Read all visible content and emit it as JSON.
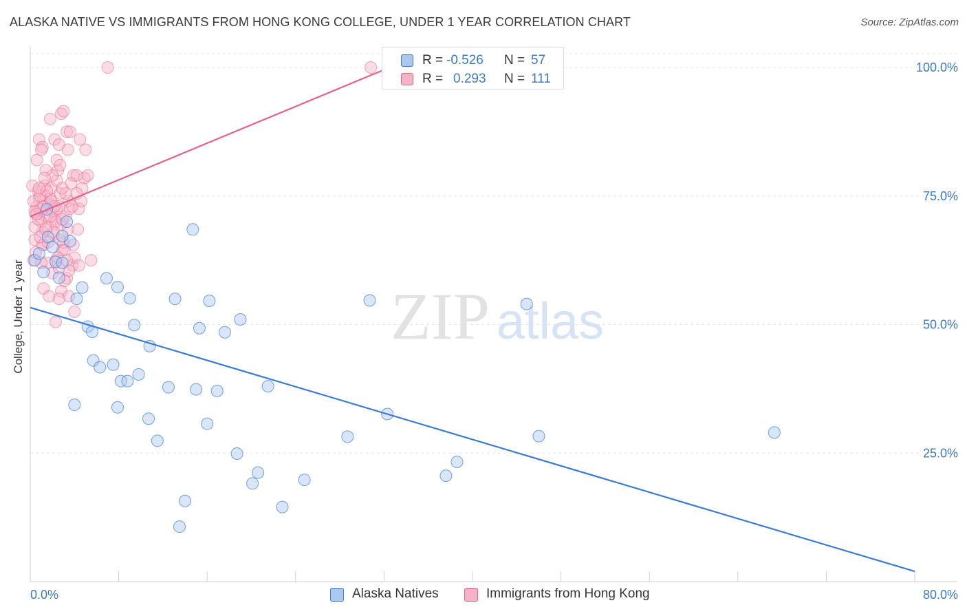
{
  "title": "ALASKA NATIVE VS IMMIGRANTS FROM HONG KONG COLLEGE, UNDER 1 YEAR CORRELATION CHART",
  "source": "Source: ZipAtlas.com",
  "colors": {
    "blue": "#3a7bd5",
    "blue_fill": "#aac8f0",
    "pink": "#e8608a",
    "pink_fill": "#f6b3c8",
    "axis_text": "#3b78c4",
    "grid": "#e6e6e6"
  },
  "legend": {
    "rows": [
      {
        "r_label": "R =",
        "r_value": "-0.526",
        "n_label": "N =",
        "n_value": "57"
      },
      {
        "r_label": "R =",
        "r_value": "0.293",
        "n_label": "N =",
        "n_value": "111"
      }
    ]
  },
  "watermark": {
    "part1": "ZIP",
    "part2": "atlas"
  },
  "chart_data": {
    "type": "scatter",
    "title": "ALASKA NATIVE VS IMMIGRANTS FROM HONG KONG COLLEGE, UNDER 1 YEAR CORRELATION CHART",
    "xlabel": "",
    "ylabel": "College, Under 1 year",
    "xlim": [
      0,
      80
    ],
    "ylim": [
      0,
      100
    ],
    "x_tick_labels": [
      "0.0%",
      "80.0%"
    ],
    "y_ticks": [
      25,
      50,
      75,
      100
    ],
    "y_tick_labels": [
      "25.0%",
      "50.0%",
      "75.0%",
      "100.0%"
    ],
    "grid": true,
    "legend_position": "bottom",
    "series": [
      {
        "name": "Alaska Natives",
        "color": "#3a7bd5",
        "r": -0.526,
        "n": 57,
        "trend": {
          "x": [
            0,
            80
          ],
          "y": [
            53.3,
            2.0
          ]
        },
        "points": [
          [
            0.4,
            62.5
          ],
          [
            0.8,
            63.8
          ],
          [
            1.2,
            60.2
          ],
          [
            1.6,
            67.0
          ],
          [
            2.0,
            65.1
          ],
          [
            2.3,
            62.2
          ],
          [
            2.6,
            59.1
          ],
          [
            2.9,
            62.0
          ],
          [
            3.3,
            70.0
          ],
          [
            3.6,
            66.2
          ],
          [
            4.2,
            55.0
          ],
          [
            4.7,
            57.2
          ],
          [
            5.2,
            49.6
          ],
          [
            5.6,
            48.6
          ],
          [
            5.7,
            43.0
          ],
          [
            6.3,
            41.7
          ],
          [
            6.9,
            59.0
          ],
          [
            7.5,
            42.2
          ],
          [
            7.9,
            57.3
          ],
          [
            8.2,
            39.0
          ],
          [
            8.8,
            39.0
          ],
          [
            9.0,
            55.1
          ],
          [
            9.4,
            49.9
          ],
          [
            9.8,
            40.3
          ],
          [
            10.8,
            45.8
          ],
          [
            11.5,
            27.4
          ],
          [
            12.5,
            37.8
          ],
          [
            13.1,
            55.0
          ],
          [
            13.5,
            10.7
          ],
          [
            14.0,
            15.7
          ],
          [
            14.7,
            68.5
          ],
          [
            15.0,
            37.4
          ],
          [
            15.3,
            49.3
          ],
          [
            16.0,
            30.7
          ],
          [
            16.2,
            54.6
          ],
          [
            16.9,
            37.1
          ],
          [
            17.6,
            48.5
          ],
          [
            18.7,
            24.9
          ],
          [
            19.0,
            51.0
          ],
          [
            20.1,
            19.1
          ],
          [
            20.6,
            21.2
          ],
          [
            21.5,
            38.0
          ],
          [
            22.8,
            14.5
          ],
          [
            24.8,
            19.8
          ],
          [
            28.7,
            28.2
          ],
          [
            30.7,
            54.7
          ],
          [
            32.3,
            32.6
          ],
          [
            37.6,
            20.6
          ],
          [
            38.6,
            23.3
          ],
          [
            44.9,
            54.0
          ],
          [
            46.0,
            28.3
          ],
          [
            67.3,
            29.0
          ],
          [
            4.0,
            34.4
          ],
          [
            7.9,
            33.9
          ],
          [
            10.7,
            31.7
          ],
          [
            2.9,
            67.2
          ],
          [
            1.5,
            72.4
          ]
        ]
      },
      {
        "name": "Immigrants from Hong Kong",
        "color": "#e8608a",
        "r": 0.293,
        "n": 111,
        "trend": {
          "x": [
            0,
            32.5
          ],
          "y": [
            71.0,
            100.0
          ]
        },
        "points": [
          [
            0.3,
            62.5
          ],
          [
            0.4,
            66.5
          ],
          [
            0.5,
            71.5
          ],
          [
            0.6,
            73.0
          ],
          [
            0.7,
            76.0
          ],
          [
            0.8,
            74.5
          ],
          [
            0.9,
            72.5
          ],
          [
            1.0,
            70.0
          ],
          [
            1.1,
            68.0
          ],
          [
            1.2,
            65.5
          ],
          [
            1.3,
            77.0
          ],
          [
            1.4,
            75.0
          ],
          [
            1.5,
            71.0
          ],
          [
            1.6,
            69.0
          ],
          [
            1.7,
            73.5
          ],
          [
            1.8,
            74.5
          ],
          [
            1.9,
            76.5
          ],
          [
            2.0,
            72.0
          ],
          [
            2.1,
            67.5
          ],
          [
            2.2,
            70.5
          ],
          [
            2.3,
            62.5
          ],
          [
            2.4,
            78.0
          ],
          [
            2.5,
            80.0
          ],
          [
            2.6,
            73.0
          ],
          [
            2.7,
            75.5
          ],
          [
            2.8,
            69.5
          ],
          [
            2.9,
            64.5
          ],
          [
            3.0,
            66.0
          ],
          [
            3.2,
            71.0
          ],
          [
            3.4,
            68.5
          ],
          [
            3.5,
            74.0
          ],
          [
            3.6,
            72.5
          ],
          [
            3.8,
            61.5
          ],
          [
            4.0,
            63.0
          ],
          [
            0.6,
            82.0
          ],
          [
            0.8,
            86.0
          ],
          [
            1.1,
            84.5
          ],
          [
            1.8,
            90.0
          ],
          [
            2.2,
            86.0
          ],
          [
            2.6,
            85.0
          ],
          [
            2.8,
            91.0
          ],
          [
            3.0,
            91.5
          ],
          [
            3.3,
            87.5
          ],
          [
            3.6,
            87.5
          ],
          [
            3.9,
            79.0
          ],
          [
            4.5,
            86.0
          ],
          [
            4.9,
            78.5
          ],
          [
            5.2,
            79.0
          ],
          [
            2.0,
            79.0
          ],
          [
            2.4,
            82.0
          ],
          [
            1.4,
            80.0
          ],
          [
            1.0,
            84.0
          ],
          [
            4.4,
            72.5
          ],
          [
            4.7,
            76.5
          ],
          [
            5.5,
            62.5
          ],
          [
            4.4,
            61.5
          ],
          [
            3.3,
            59.0
          ],
          [
            2.8,
            56.5
          ],
          [
            2.6,
            55.0
          ],
          [
            1.2,
            57.0
          ],
          [
            2.3,
            50.5
          ],
          [
            3.5,
            55.5
          ],
          [
            4.0,
            52.5
          ],
          [
            0.4,
            69.0
          ],
          [
            0.5,
            64.0
          ],
          [
            0.3,
            74.0
          ],
          [
            0.2,
            77.0
          ],
          [
            7.0,
            100.0
          ],
          [
            30.8,
            100.0
          ],
          [
            5.0,
            84.0
          ],
          [
            2.3,
            70.0
          ],
          [
            1.5,
            62.0
          ],
          [
            3.1,
            64.5
          ],
          [
            3.9,
            65.5
          ],
          [
            4.3,
            68.5
          ],
          [
            4.2,
            75.5
          ],
          [
            3.2,
            75.5
          ],
          [
            2.4,
            72.5
          ],
          [
            1.8,
            71.0
          ],
          [
            1.2,
            73.0
          ],
          [
            0.9,
            75.0
          ],
          [
            0.7,
            70.5
          ],
          [
            1.5,
            76.0
          ],
          [
            2.9,
            76.5
          ],
          [
            3.7,
            77.5
          ],
          [
            4.2,
            79.0
          ],
          [
            2.1,
            68.0
          ],
          [
            2.7,
            66.5
          ],
          [
            1.1,
            65.5
          ],
          [
            0.6,
            71.5
          ],
          [
            3.5,
            60.5
          ],
          [
            3.1,
            58.5
          ],
          [
            2.0,
            60.0
          ],
          [
            1.7,
            55.5
          ],
          [
            2.5,
            63.0
          ],
          [
            0.9,
            67.0
          ],
          [
            1.3,
            78.5
          ],
          [
            1.9,
            74.0
          ],
          [
            2.7,
            81.0
          ],
          [
            3.4,
            84.0
          ],
          [
            2.2,
            73.0
          ],
          [
            1.6,
            66.0
          ],
          [
            0.4,
            72.0
          ],
          [
            2.9,
            70.5
          ],
          [
            3.8,
            73.0
          ],
          [
            4.6,
            74.0
          ],
          [
            0.8,
            76.5
          ],
          [
            1.4,
            68.5
          ],
          [
            2.6,
            61.0
          ],
          [
            3.3,
            62.5
          ],
          [
            1.0,
            62.0
          ]
        ]
      }
    ]
  }
}
